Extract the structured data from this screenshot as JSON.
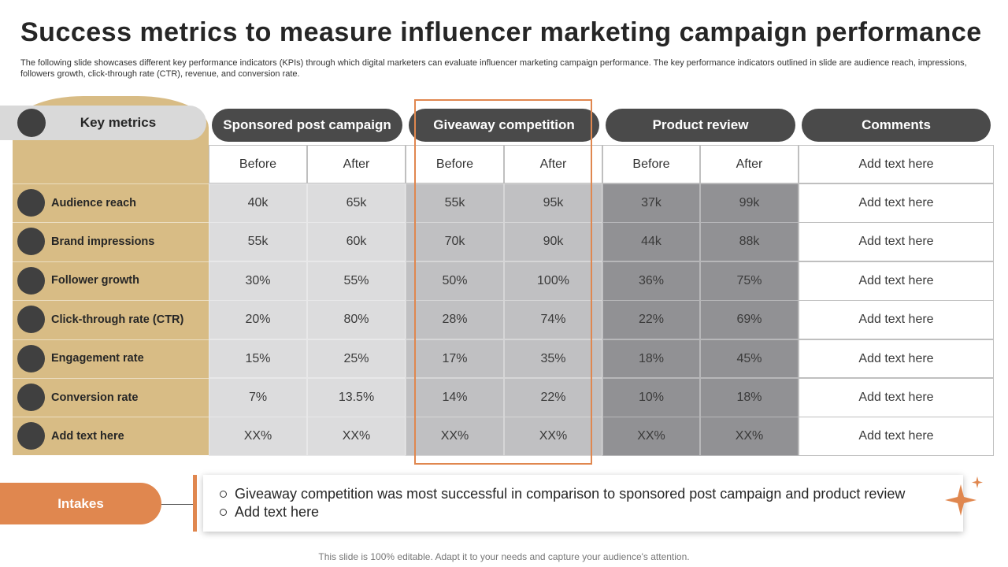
{
  "title": "Success metrics to measure influencer marketing campaign performance",
  "description": "The following slide showcases different key performance indicators (KPIs) through which digital marketers can evaluate influencer marketing campaign performance. The key performance indicators outlined in slide are audience reach, impressions, followers growth, click-through rate (CTR), revenue, and conversion rate.",
  "table": {
    "corner": "Key metrics",
    "groups": [
      "Sponsored post campaign",
      "Giveaway competition",
      "Product review",
      "Comments"
    ],
    "subheaders": [
      "Before",
      "After",
      "Before",
      "After",
      "Before",
      "After",
      "Add text here"
    ],
    "rows": [
      {
        "metric": "Audience reach",
        "cells": [
          "40k",
          "65k",
          "55k",
          "95k",
          "37k",
          "99k",
          "Add text here"
        ]
      },
      {
        "metric": "Brand impressions",
        "cells": [
          "55k",
          "60k",
          "70k",
          "90k",
          "44k",
          "88k",
          "Add text here"
        ]
      },
      {
        "metric": "Follower growth",
        "cells": [
          "30%",
          "55%",
          "50%",
          "100%",
          "36%",
          "75%",
          "Add text here"
        ]
      },
      {
        "metric": "Click-through rate (CTR)",
        "cells": [
          "20%",
          "80%",
          "28%",
          "74%",
          "22%",
          "69%",
          "Add text here"
        ]
      },
      {
        "metric": "Engagement rate",
        "cells": [
          "15%",
          "25%",
          "17%",
          "35%",
          "18%",
          "45%",
          "Add text here"
        ]
      },
      {
        "metric": "Conversion rate",
        "cells": [
          "7%",
          "13.5%",
          "14%",
          "22%",
          "10%",
          "18%",
          "Add text here"
        ]
      },
      {
        "metric": "Add text here",
        "cells": [
          "XX%",
          "XX%",
          "XX%",
          "XX%",
          "XX%",
          "XX%",
          "Add text here"
        ]
      }
    ]
  },
  "intakes": {
    "label": "Intakes",
    "points": [
      "Giveaway competition was most successful in comparison to sponsored post campaign and product review",
      "Add text here"
    ]
  },
  "footer": "This slide is 100% editable. Adapt it to your needs and capture your audience's attention."
}
